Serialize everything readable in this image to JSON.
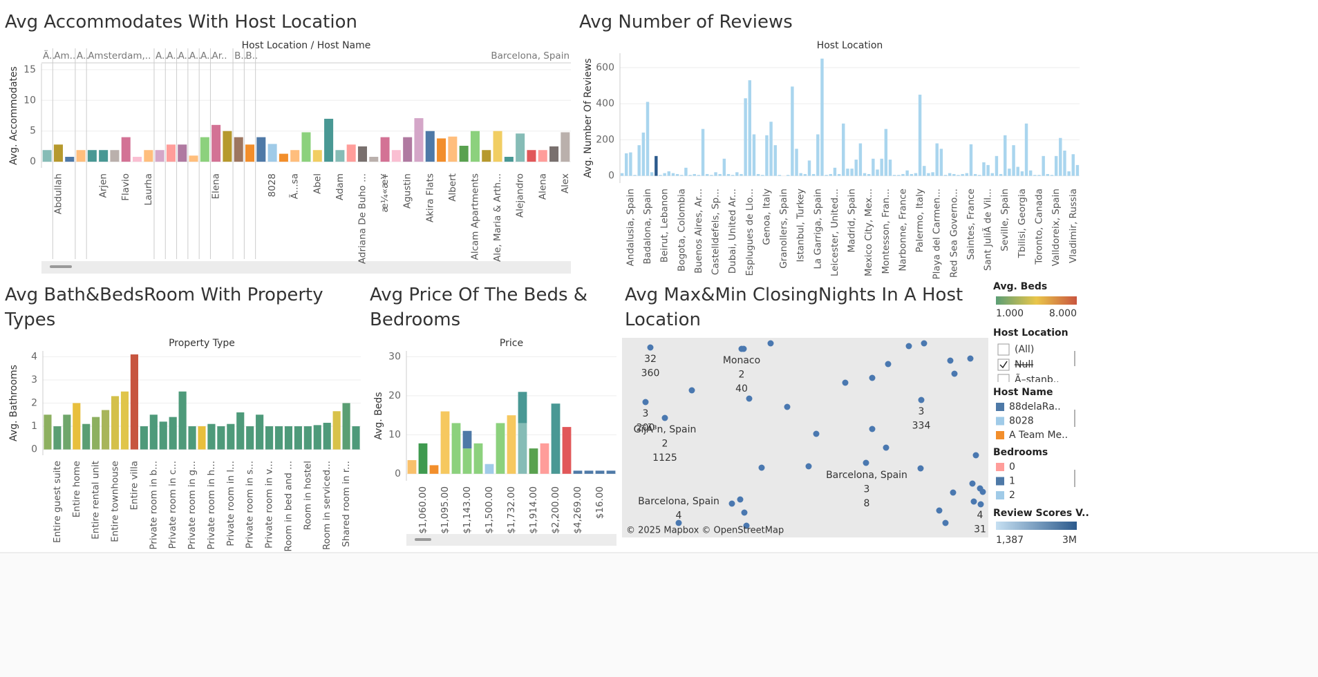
{
  "chart_data": [
    {
      "type": "bar",
      "title": "Avg Accommodates With Host Location",
      "x_header": "Host Location / Host Name",
      "ylabel": "Avg. Accommodates",
      "groups": [
        "Ä..",
        "Am..",
        "A..",
        "Amsterdam,..",
        "A..",
        "A..",
        "A..",
        "A..",
        "A..",
        "Ar..",
        "B..",
        "B..",
        "Barcelona, Spain"
      ],
      "categories": [
        null,
        "Abdullah",
        null,
        null,
        null,
        "Arjen",
        null,
        "Flavio",
        null,
        "Laurha",
        null,
        null,
        null,
        null,
        null,
        "Elena",
        null,
        null,
        null,
        null,
        "8028",
        null,
        "Ã...sa",
        null,
        "Abel",
        null,
        "Adam",
        null,
        "Adriana De Buho ...",
        null,
        "æ¼«æ¥",
        null,
        "Agustin",
        null,
        "Akira Flats",
        null,
        "Albert",
        null,
        "Alcam Apartments",
        null,
        "Ale, Maria & Arth...",
        null,
        "Alejandro",
        null,
        "Alena",
        null,
        "Alex"
      ],
      "values": [
        1.9,
        2.8,
        0.8,
        1.9,
        1.9,
        1.9,
        1.9,
        4,
        0.8,
        1.9,
        1.9,
        2.8,
        2.8,
        1,
        4,
        6,
        5,
        4,
        2.8,
        4,
        2.9,
        1.3,
        1.9,
        4.8,
        1.9,
        7,
        1.9,
        2.8,
        2.5,
        0.8,
        4,
        1.9,
        4,
        7.1,
        5,
        3.8,
        4.1,
        2.6,
        5,
        1.9,
        5,
        0.8,
        4.6,
        1.9,
        1.9,
        2.5,
        4.8
      ],
      "colors": [
        "#86bcb6",
        "#b6992d",
        "#4e79a7",
        "#ffbe7d",
        "#499894",
        "#499894",
        "#bab0ac",
        "#d37295",
        "#fabfd2",
        "#ffbe7d",
        "#d4a6c8",
        "#ff9d9a",
        "#b07aa1",
        "#ffbe7d",
        "#8cd17d",
        "#d37295",
        "#b6992d",
        "#9d7660",
        "#f28e2b",
        "#4e79a7",
        "#a0cbe8",
        "#f28e2b",
        "#ffbe7d",
        "#8cd17d",
        "#f1ce63",
        "#499894",
        "#86bcb6",
        "#ff9d9a",
        "#79706e",
        "#bab0ac",
        "#d37295",
        "#fabfd2",
        "#b07aa1",
        "#d4a6c8",
        "#4e79a7",
        "#f28e2b",
        "#ffbe7d",
        "#59a14f",
        "#8cd17d",
        "#b6992d",
        "#f1ce63",
        "#499894",
        "#86bcb6",
        "#e15759",
        "#ff9d9a",
        "#79706e",
        "#bab0ac"
      ],
      "ylim": [
        -1,
        16
      ],
      "yticks": [
        0,
        5,
        10,
        15
      ]
    },
    {
      "type": "bar",
      "title": "Avg Number of Reviews",
      "x_header": "Host Location",
      "ylabel": "Avg. Number Of Reviews",
      "categories": [
        null,
        null,
        "Andalusia, Spain",
        null,
        null,
        null,
        "Badalona, Spain",
        null,
        null,
        null,
        "Beirut, Lebanon",
        null,
        null,
        null,
        "Bogota, Colombia",
        null,
        null,
        null,
        "Buenos Aires, Ar...",
        null,
        null,
        null,
        "Castelldefels, Sp...",
        null,
        null,
        null,
        "Dubai, United Ar...",
        null,
        null,
        null,
        "Esplugues de Llo...",
        null,
        null,
        null,
        "Genoa, Italy",
        null,
        null,
        null,
        "Granollers, Spain",
        null,
        null,
        null,
        "Istanbul, Turkey",
        null,
        null,
        null,
        "La Garriga, Spain",
        null,
        null,
        null,
        "Leicester, United...",
        null,
        null,
        null,
        "Madrid, Spain",
        null,
        null,
        null,
        "Mexico City, Mex...",
        null,
        null,
        null,
        "Montesson, Fran...",
        null,
        null,
        null,
        "Narbonne, France",
        null,
        null,
        null,
        "Palermo, Italy",
        null,
        null,
        null,
        "Playa del Carmen...",
        null,
        null,
        null,
        "Red Sea Governo...",
        null,
        null,
        null,
        "Saintes, France",
        null,
        null,
        null,
        "Sant JuliÃ  de Vil...",
        null,
        null,
        null,
        "Seville, Spain",
        null,
        null,
        null,
        "Tbilisi, Georgia",
        null,
        null,
        null,
        "Toronto, Canada",
        null,
        null,
        null,
        "Valldoreix, Spain",
        null,
        null,
        null,
        "Vladimir, Russia",
        null
      ],
      "values": [
        15,
        125,
        130,
        5,
        170,
        240,
        410,
        20,
        110,
        5,
        15,
        25,
        15,
        10,
        5,
        45,
        5,
        10,
        5,
        260,
        10,
        5,
        20,
        10,
        95,
        10,
        5,
        20,
        10,
        430,
        530,
        230,
        10,
        5,
        225,
        300,
        170,
        5,
        0,
        5,
        495,
        150,
        15,
        10,
        85,
        10,
        230,
        650,
        5,
        10,
        45,
        10,
        290,
        40,
        40,
        90,
        180,
        15,
        10,
        95,
        35,
        95,
        260,
        90,
        5,
        5,
        10,
        30,
        10,
        15,
        450,
        55,
        15,
        20,
        180,
        150,
        5,
        15,
        10,
        5,
        10,
        15,
        175,
        10,
        5,
        75,
        60,
        15,
        110,
        10,
        225,
        40,
        170,
        50,
        25,
        290,
        30,
        5,
        5,
        110,
        10,
        5,
        110,
        210,
        140,
        25,
        120,
        60
      ],
      "color": "#a9d5ee",
      "highlight_color": "#2c5a8c",
      "highlight": [
        8
      ],
      "ylim": [
        -40,
        680
      ],
      "yticks": [
        0,
        200,
        400,
        600
      ]
    },
    {
      "type": "bar",
      "title": "Avg Bath&BedsRoom With Property Types",
      "x_header": "Property Type",
      "ylabel": "Avg. Bathrooms",
      "categories": [
        null,
        "Entire guest suite",
        null,
        "Entire home",
        null,
        "Entire rental unit",
        null,
        "Entire townhouse",
        null,
        "Entire villa",
        null,
        "Private room in b...",
        null,
        "Private room in c...",
        null,
        "Private room in g...",
        null,
        "Private room in h...",
        null,
        "Private room in l...",
        null,
        "Private room in s...",
        null,
        "Private room in v...",
        null,
        "Room in bed and ...",
        null,
        "Room in hostel",
        null,
        "Room in serviced...",
        null,
        "Shared room in r...",
        null
      ],
      "values": [
        1.5,
        1.0,
        1.5,
        2.0,
        1.1,
        1.4,
        1.7,
        2.3,
        2.5,
        4.1,
        1.0,
        1.5,
        1.2,
        1.4,
        2.5,
        1.0,
        1.0,
        1.1,
        1.0,
        1.1,
        1.6,
        1.0,
        1.5,
        1.0,
        1.0,
        1.0,
        1.0,
        1.0,
        1.05,
        1.15,
        1.65,
        2.0,
        1.0
      ],
      "colors": [
        "#8db060",
        "#5a9e73",
        "#6fa66b",
        "#e8bf3c",
        "#5a9e73",
        "#8db060",
        "#a8b55a",
        "#d4c04a",
        "#e0c54a",
        "#c7553f",
        "#4e9a7a",
        "#4e9a7a",
        "#4e9a7a",
        "#4e9a7a",
        "#4e9a7a",
        "#4e9a7a",
        "#e8bf3c",
        "#4e9a7a",
        "#4e9a7a",
        "#4e9a7a",
        "#4e9a7a",
        "#4e9a7a",
        "#4e9a7a",
        "#4e9a7a",
        "#4e9a7a",
        "#4e9a7a",
        "#4e9a7a",
        "#4e9a7a",
        "#4e9a7a",
        "#4e9a7a",
        "#d8c24a",
        "#5a9e73",
        "#4e9a7a"
      ],
      "ylim": [
        -0.25,
        4.25
      ],
      "yticks": [
        0,
        1,
        2,
        3,
        4
      ]
    },
    {
      "type": "stacked_bar",
      "title": "Avg Price Of The Beds & Bedrooms",
      "x_header": "Price",
      "ylabel": "Avg. Beds",
      "categories": [
        null,
        "$1,060.00",
        null,
        "$1,095.00",
        null,
        "$1,143.00",
        null,
        "$1,500.00",
        null,
        "$1,732.00",
        null,
        "$1,914.00",
        null,
        "$2,200.00",
        null,
        "$4,269.00",
        null,
        "$16.00",
        null
      ],
      "series": [
        {
          "values": [
            3.5,
            7.8,
            2.2,
            16,
            13,
            6.5,
            7.8,
            2.5,
            13,
            15,
            13,
            6.5,
            7.8,
            18,
            12,
            0.8,
            0.8,
            0.8,
            0.8
          ],
          "colors": [
            "#f9c06b",
            "#3f9a4f",
            "#f28e2b",
            "#f6c85f",
            "#8cd17d",
            "#8cd17d",
            "#8cd17d",
            "#a0cbe8",
            "#8cd17d",
            "#f6c85f",
            "#86bcb6",
            "#59a14f",
            "#ff9d9a",
            "#499894",
            "#e15759",
            "#4e79a7",
            "#4e79a7",
            "#4e79a7",
            "#4e79a7"
          ]
        },
        {
          "values": [
            null,
            null,
            null,
            null,
            null,
            4.5,
            null,
            null,
            null,
            null,
            8,
            null,
            null,
            null,
            null,
            null,
            null,
            null,
            null
          ],
          "colors": [
            null,
            null,
            null,
            null,
            null,
            "#4e79a7",
            null,
            null,
            null,
            null,
            "#499894",
            null,
            null,
            null,
            null,
            null,
            null,
            null,
            null
          ]
        }
      ],
      "ylim": [
        -1.8,
        31.5
      ],
      "yticks": [
        0,
        10,
        20,
        30
      ]
    }
  ],
  "map": {
    "title": "Avg Max&Min ClosingNights In A Host Location",
    "labels": [
      [
        "32",
        "360"
      ],
      [
        "Monaco",
        "2",
        "40"
      ],
      [
        "3",
        "200"
      ],
      [
        "GijÃ³n, Spain",
        "2",
        "1125"
      ],
      [
        "3",
        "334"
      ],
      [
        "Barcelona, Spain",
        "3",
        "8"
      ],
      [
        "Barcelona, Spain",
        "4"
      ],
      [
        "4",
        "31"
      ]
    ],
    "attribution": "© 2025 Mapbox © OpenStreetMap"
  },
  "legends": {
    "beds": {
      "title": "Avg. Beds",
      "min": "1.000",
      "max": "8.000"
    },
    "host_location": {
      "title": "Host Location",
      "items": [
        "(All)",
        "Null",
        "Ã–stanb.."
      ]
    },
    "host_name": {
      "title": "Host Name",
      "items": [
        "88delaRa..",
        "8028",
        "A Team Me.."
      ],
      "colors": [
        "#4e79a7",
        "#a0cbe8",
        "#f28e2b"
      ]
    },
    "bedrooms": {
      "title": "Bedrooms",
      "items": [
        "0",
        "1",
        "2"
      ],
      "colors": [
        "#ff9d9a",
        "#4e79a7",
        "#a0cbe8"
      ]
    },
    "review_scores": {
      "title": "Review Scores V..",
      "min": "1,387",
      "max": "3M"
    }
  }
}
